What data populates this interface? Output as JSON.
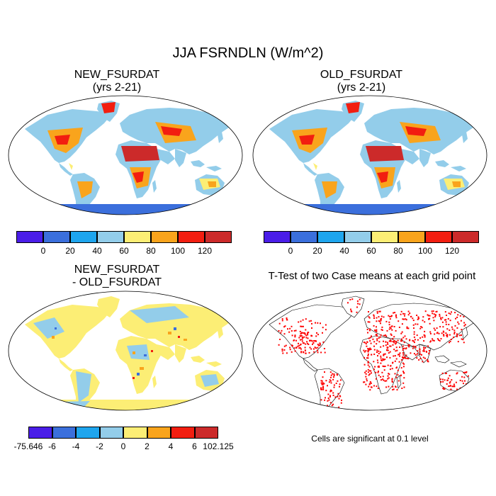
{
  "title": "JJA FSRNDLN (W/m^2)",
  "panels": {
    "top_left": {
      "title_line1": "NEW_FSURDAT",
      "title_line2": "(yrs 2-21)"
    },
    "top_right": {
      "title_line1": "OLD_FSURDAT",
      "title_line2": "(yrs 2-21)"
    },
    "bottom_left": {
      "title_line1": "NEW_FSURDAT",
      "title_line2": "- OLD_FSURDAT"
    },
    "bottom_right": {
      "title": "T-Test of two Case means at each grid point",
      "note": "Cells are significant at 0.1 level"
    }
  },
  "colorbars": {
    "absolute": {
      "colors": [
        "#4a1de8",
        "#3b6fdc",
        "#1ea5ee",
        "#93cdea",
        "#fcee75",
        "#f9a41c",
        "#f21e10",
        "#cc2a2a"
      ],
      "labels": [
        "0",
        "20",
        "40",
        "60",
        "80",
        "100",
        "120"
      ]
    },
    "difference": {
      "colors": [
        "#4a1de8",
        "#3b6fdc",
        "#1ea5ee",
        "#93cdea",
        "#fcee75",
        "#f9a41c",
        "#f21e10",
        "#cc2a2a"
      ],
      "labels": [
        "-75.646",
        "-6",
        "-4",
        "-2",
        "0",
        "2",
        "4",
        "6",
        "102.125"
      ]
    }
  },
  "significance_color": "#ff0000"
}
